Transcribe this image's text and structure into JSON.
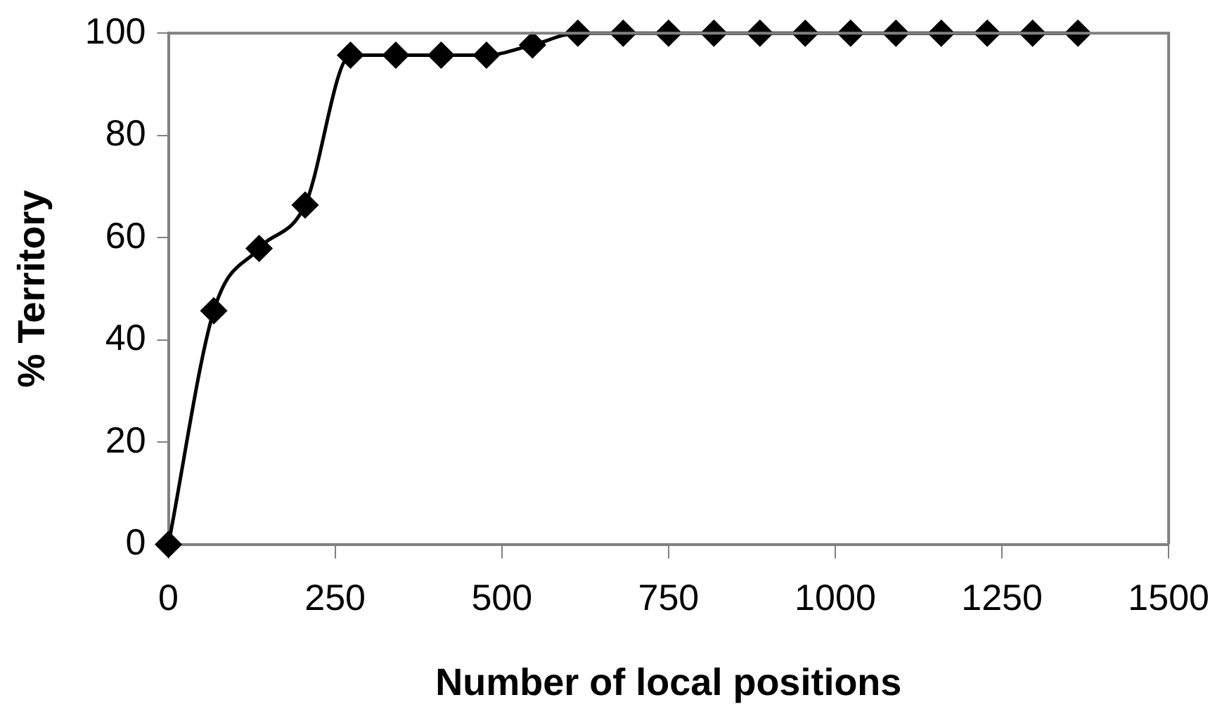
{
  "chart_data": {
    "type": "line",
    "xlabel": "Number of local positions",
    "ylabel": "% Territory",
    "x": [
      0,
      68,
      136,
      205,
      273,
      341,
      409,
      477,
      546,
      614,
      682,
      750,
      818,
      887,
      955,
      1023,
      1091,
      1159,
      1228,
      1296,
      1364
    ],
    "series": [
      {
        "color": "#000000",
        "values": [
          0,
          45.7,
          57.9,
          66.4,
          95.7,
          95.7,
          95.7,
          95.7,
          97.7,
          100,
          100,
          100,
          100,
          100,
          100,
          100,
          100,
          100,
          100,
          100,
          100
        ]
      }
    ],
    "xlim": [
      0,
      1500
    ],
    "xticks": [
      0,
      250,
      500,
      750,
      1000,
      1250,
      1500
    ],
    "ylim": [
      0,
      100
    ],
    "yticks": [
      0,
      20,
      40,
      60,
      80,
      100
    ],
    "grid": false,
    "legend": false,
    "marker": "diamond",
    "line_style": "solid"
  }
}
